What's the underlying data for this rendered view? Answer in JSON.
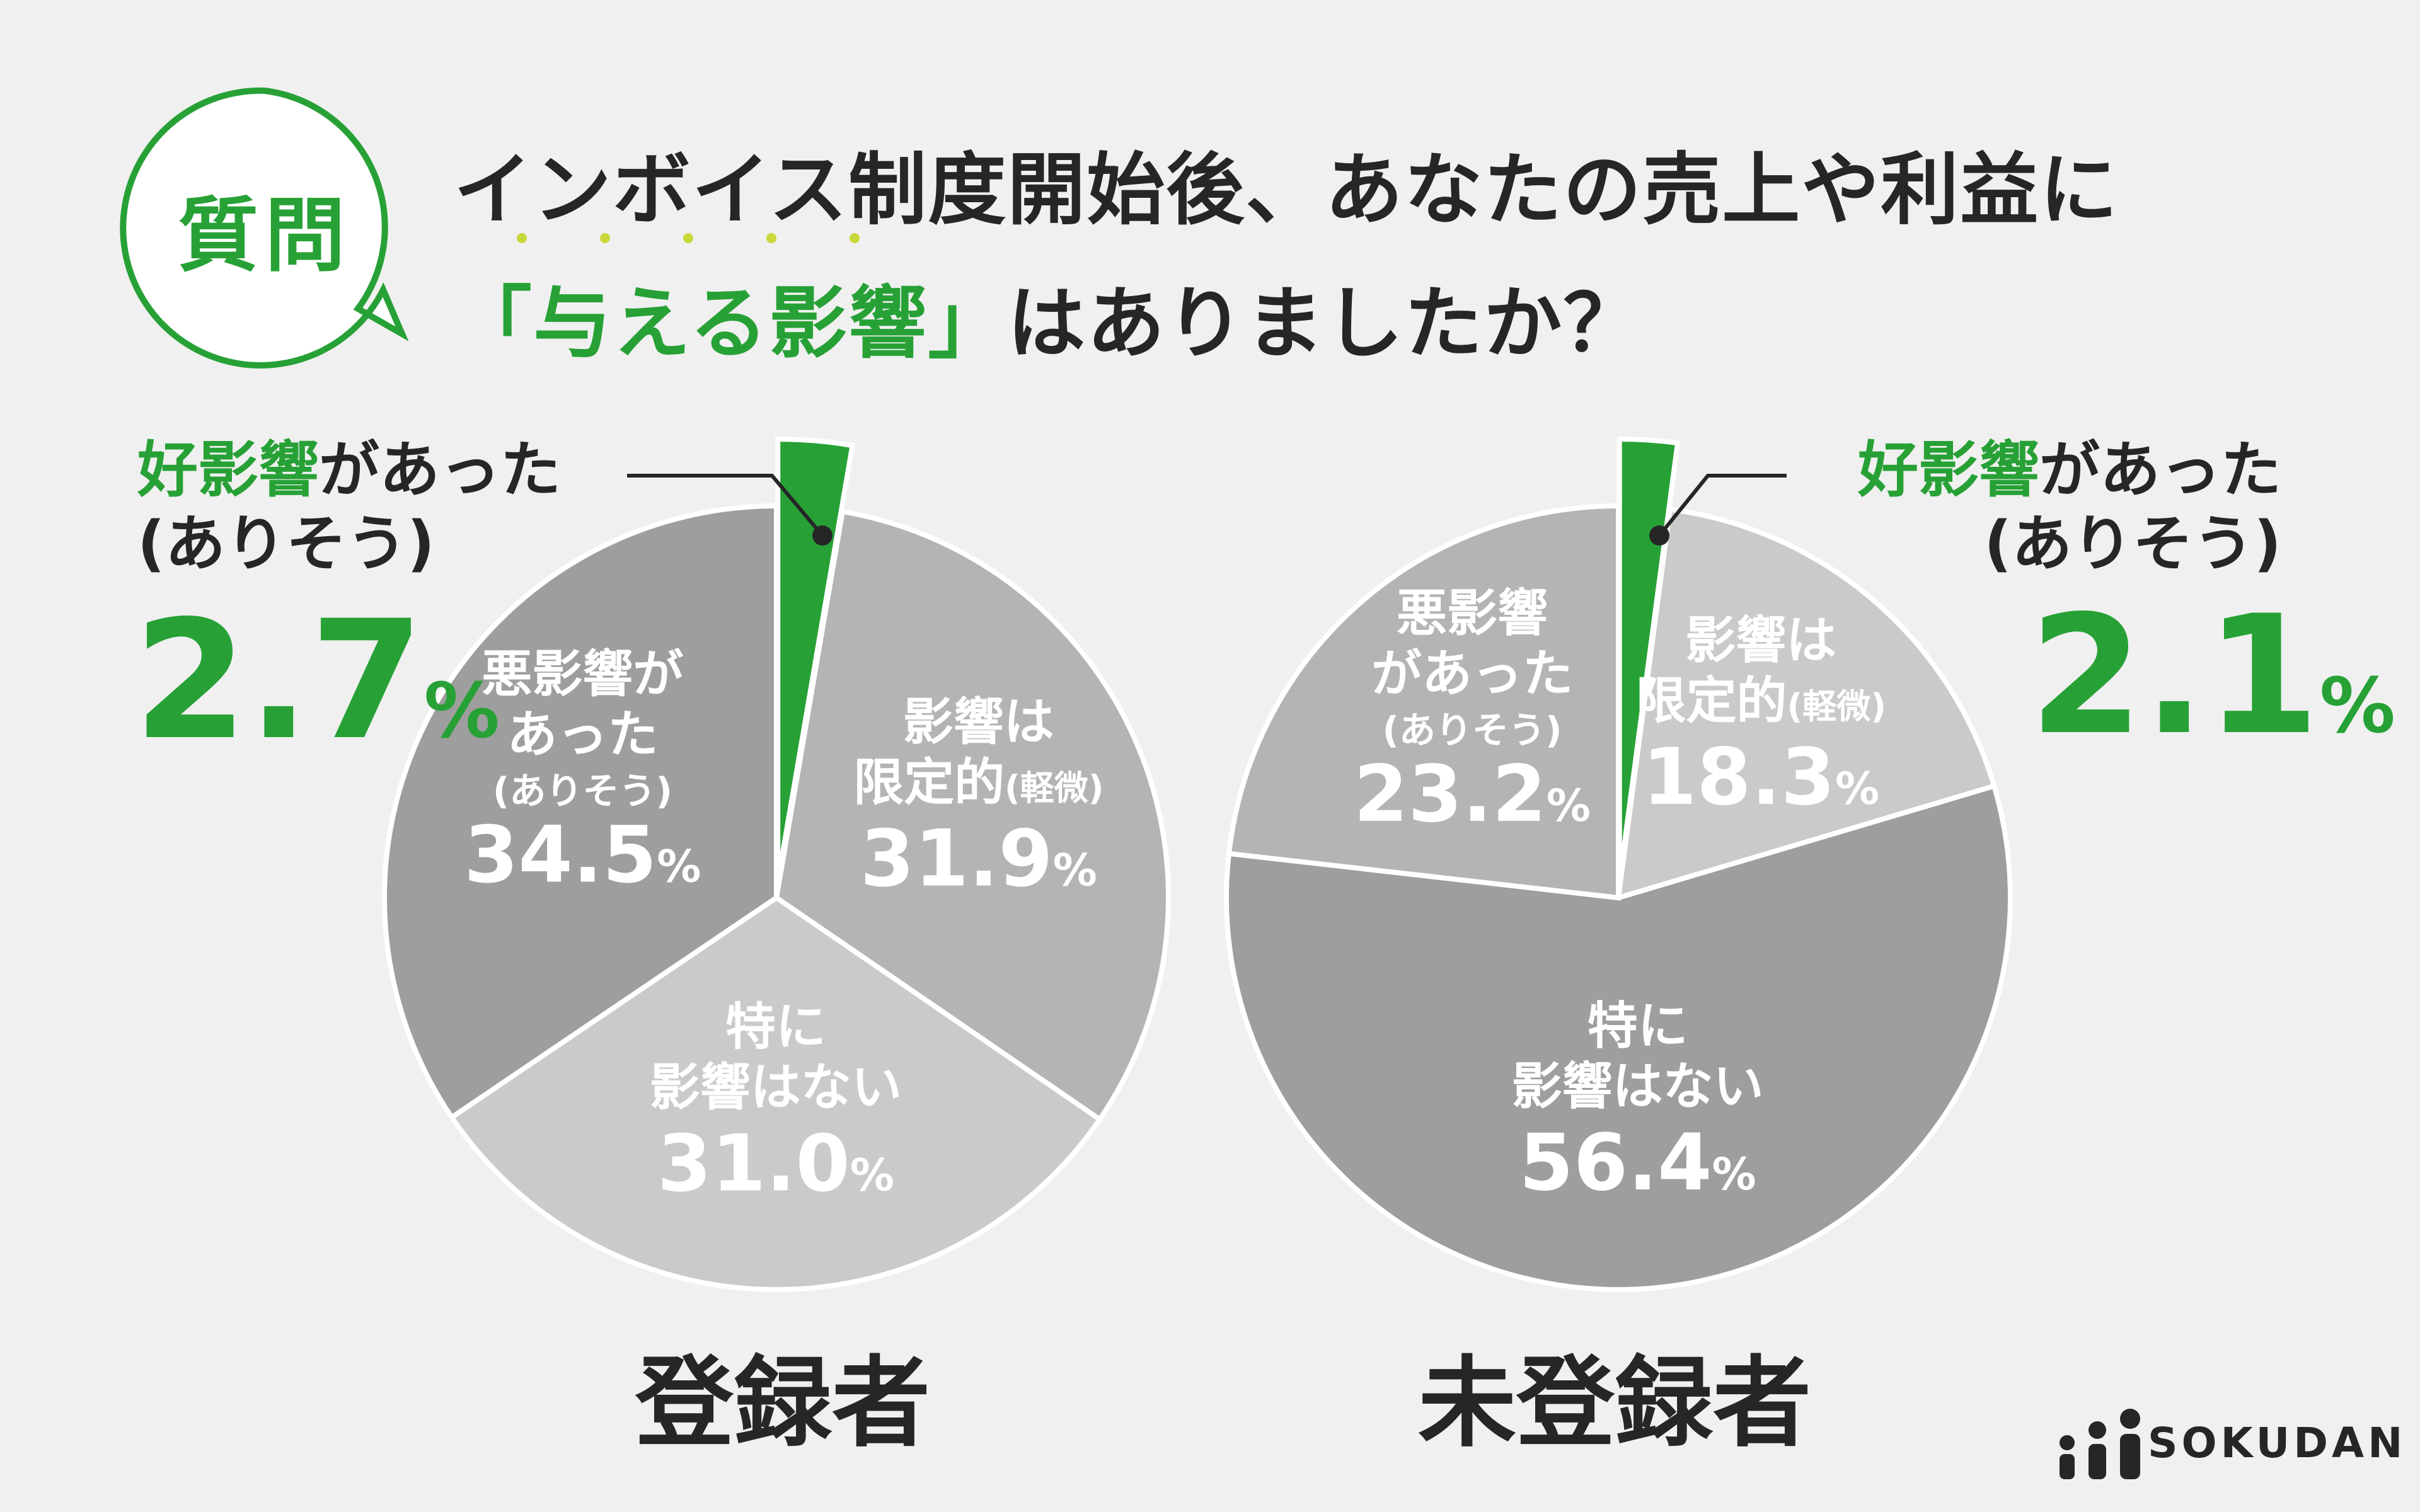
{
  "question": {
    "badge": "質問",
    "line1": "インボイス制度開始後、あなたの売上や利益に",
    "line2_open": "「",
    "line2_highlight": "与える影響",
    "line2_close": "」",
    "line2_rest": "はありましたか？"
  },
  "brand": {
    "name": "SOKUDAN"
  },
  "colors": {
    "green": "#27a136",
    "dark_gray": "#9e9e9e",
    "mid_gray": "#b4b4b4",
    "light_gray": "#cacaca",
    "background": "#f0f0f0"
  },
  "callouts": [
    {
      "green": "好影響",
      "rest": "があった",
      "sub": "(ありそう)",
      "value": "2.7",
      "unit": "%"
    },
    {
      "green": "好影響",
      "rest": "があった",
      "sub": "(ありそう)",
      "value": "2.1",
      "unit": "%"
    }
  ],
  "chart_data": [
    {
      "type": "pie",
      "title": "登録者",
      "slices": [
        {
          "label": "好影響があった(ありそう)",
          "value": 2.7,
          "pct": "2.7",
          "lines": [],
          "color": "#27a136",
          "exploded": true
        },
        {
          "label": "影響は限定的(軽微)",
          "value": 31.9,
          "pct": "31.9",
          "lines": [
            "影響は",
            "限定的"
          ],
          "small": "(軽微)",
          "color": "#b4b4b4"
        },
        {
          "label": "特に影響はない",
          "value": 31.0,
          "pct": "31.0",
          "lines": [
            "特に",
            "影響はない"
          ],
          "color": "#cacaca"
        },
        {
          "label": "悪影響があった(ありそう)",
          "value": 34.5,
          "pct": "34.5",
          "lines": [
            "悪影響が",
            "あった"
          ],
          "sub": "(ありそう)",
          "color": "#9e9e9e"
        }
      ]
    },
    {
      "type": "pie",
      "title": "未登録者",
      "slices": [
        {
          "label": "好影響があった(ありそう)",
          "value": 2.1,
          "pct": "2.1",
          "lines": [],
          "color": "#27a136",
          "exploded": true
        },
        {
          "label": "影響は限定的(軽微)",
          "value": 18.3,
          "pct": "18.3",
          "lines": [
            "影響は",
            "限定的"
          ],
          "small": "(軽微)",
          "color": "#cacaca"
        },
        {
          "label": "特に影響はない",
          "value": 56.4,
          "pct": "56.4",
          "lines": [
            "特に",
            "影響はない"
          ],
          "color": "#9e9e9e"
        },
        {
          "label": "悪影響があった(ありそう)",
          "value": 23.2,
          "pct": "23.2",
          "lines": [
            "悪影響",
            "があった"
          ],
          "sub": "(ありそう)",
          "color": "#b4b4b4"
        }
      ]
    }
  ]
}
